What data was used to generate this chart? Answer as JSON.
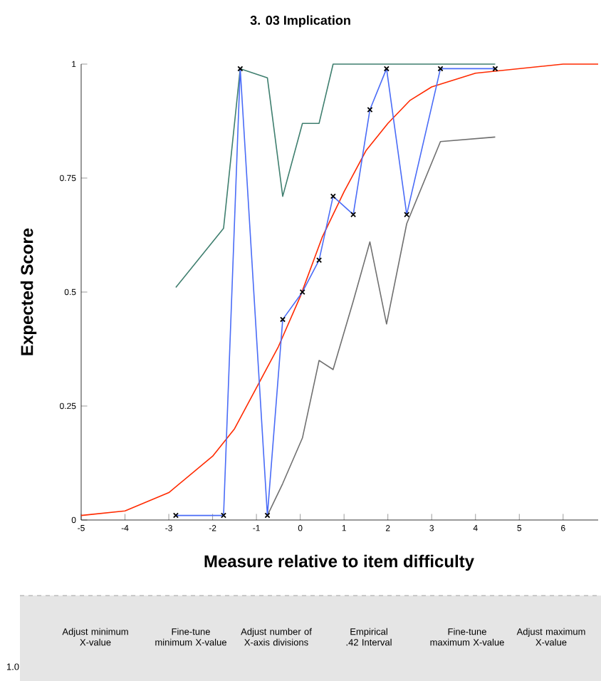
{
  "chart_data": {
    "type": "line",
    "title": "3. 03 Implication",
    "xlabel": "Measure relative to item difficulty",
    "ylabel": "Expected Score",
    "xlim": [
      -5,
      6.8
    ],
    "ylim": [
      0,
      1
    ],
    "xticks": [
      -5,
      -4,
      -3,
      -2,
      -1,
      0,
      1,
      2,
      3,
      4,
      5,
      6
    ],
    "yticks": [
      0,
      0.25,
      0.5,
      0.75,
      1
    ],
    "grid": false,
    "marker": "none",
    "series": [
      {
        "color": "#3f7f6f",
        "x": [
          -2.84,
          -1.75,
          -1.37,
          -0.75,
          -0.4,
          0.05,
          0.43,
          0.75,
          1.21,
          1.59,
          1.97,
          2.43,
          3.2,
          4.45
        ],
        "values": [
          0.51,
          0.64,
          0.99,
          0.97,
          0.71,
          0.87,
          0.87,
          1.0,
          1.0,
          1.0,
          1.0,
          1.0,
          1.0,
          1.0
        ]
      },
      {
        "color": "#707070",
        "x": [
          -0.75,
          -0.4,
          0.05,
          0.43,
          0.75,
          1.21,
          1.59,
          1.97,
          2.43,
          3.2,
          4.45
        ],
        "values": [
          0.01,
          0.08,
          0.18,
          0.35,
          0.33,
          0.48,
          0.61,
          0.43,
          0.65,
          0.83,
          0.84
        ]
      },
      {
        "color": "#ff2a00",
        "x": [
          -5,
          -4,
          -3,
          -2,
          -1.5,
          -1,
          -0.5,
          0,
          0.5,
          1,
          1.5,
          2,
          2.5,
          3,
          4,
          5,
          6,
          6.8
        ],
        "values": [
          0.01,
          0.02,
          0.06,
          0.14,
          0.2,
          0.29,
          0.38,
          0.49,
          0.62,
          0.72,
          0.81,
          0.87,
          0.92,
          0.95,
          0.98,
          0.99,
          1.0,
          1.0
        ]
      },
      {
        "color": "#4a6cf7",
        "marker": "cross",
        "x": [
          -2.84,
          -1.75,
          -1.37,
          -0.75,
          -0.4,
          0.05,
          0.43,
          0.75,
          1.21,
          1.59,
          1.97,
          2.43,
          3.2,
          4.45
        ],
        "values": [
          0.01,
          0.01,
          0.99,
          0.01,
          0.44,
          0.5,
          0.57,
          0.71,
          0.67,
          0.9,
          0.99,
          0.67,
          0.99,
          0.99
        ]
      }
    ],
    "annotations": [
      "Adjust minimum X-value",
      "Fine-tune minimum X-value",
      "Adjust number of X-axis divisions",
      "Empirical .42 Interval",
      "Fine-tune maximum X-value",
      "Adjust maximum X-value",
      "1.0"
    ]
  }
}
